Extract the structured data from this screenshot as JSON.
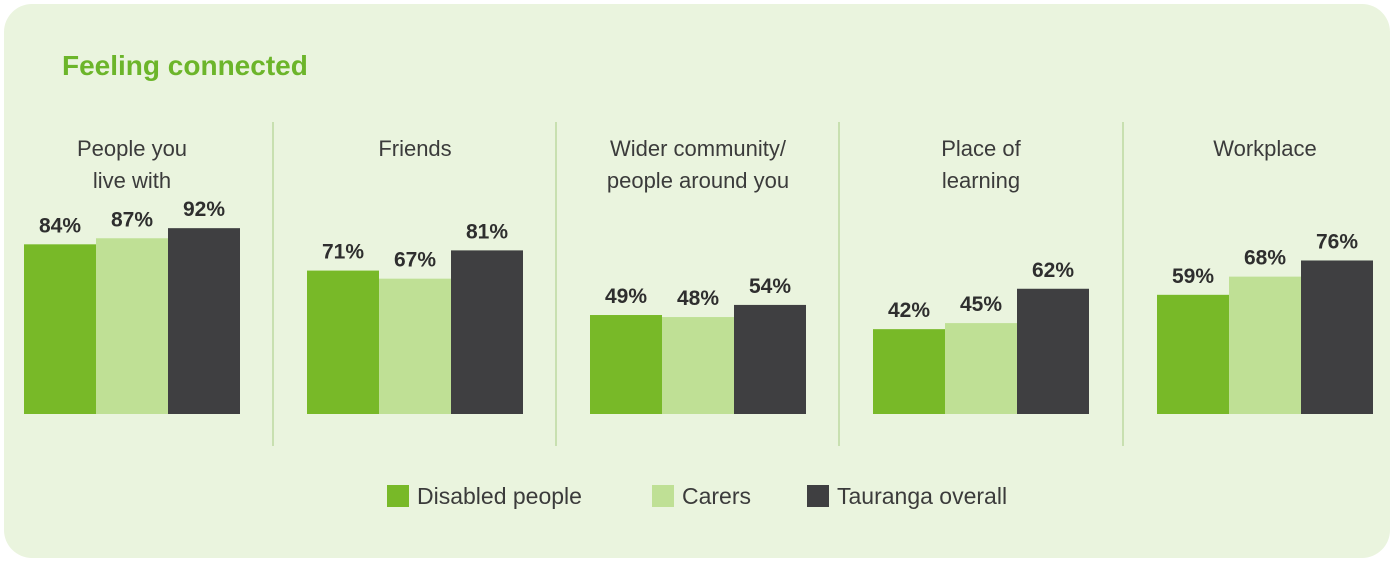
{
  "title": "Feeling connected",
  "colors": {
    "background": "#eaf4de",
    "title": "#6cb52a",
    "divider": "#bcd9a0",
    "disabled_people": "#78b928",
    "carers": "#bfe095",
    "tauranga_overall": "#3f3f41",
    "value_label": "#2e2e2e",
    "group_label": "#3b3b3b"
  },
  "legend": [
    {
      "label": "Disabled people",
      "color": "#78b928"
    },
    {
      "label": "Carers",
      "color": "#bfe095"
    },
    {
      "label": "Tauranga overall",
      "color": "#3f3f41"
    }
  ],
  "chart_data": {
    "type": "bar",
    "title": "Feeling connected",
    "unit": "%",
    "categories": [
      [
        "People you",
        "live with"
      ],
      [
        "Friends"
      ],
      [
        "Wider community/",
        "people around you"
      ],
      [
        "Place of",
        "learning"
      ],
      [
        "Workplace"
      ]
    ],
    "series": [
      {
        "name": "Disabled people",
        "values": [
          84,
          71,
          49,
          42,
          59
        ]
      },
      {
        "name": "Carers",
        "values": [
          87,
          67,
          48,
          45,
          68
        ]
      },
      {
        "name": "Tauranga overall",
        "values": [
          92,
          81,
          54,
          62,
          76
        ]
      }
    ],
    "ylim": [
      0,
      100
    ],
    "grid": false,
    "legend_position": "bottom"
  }
}
